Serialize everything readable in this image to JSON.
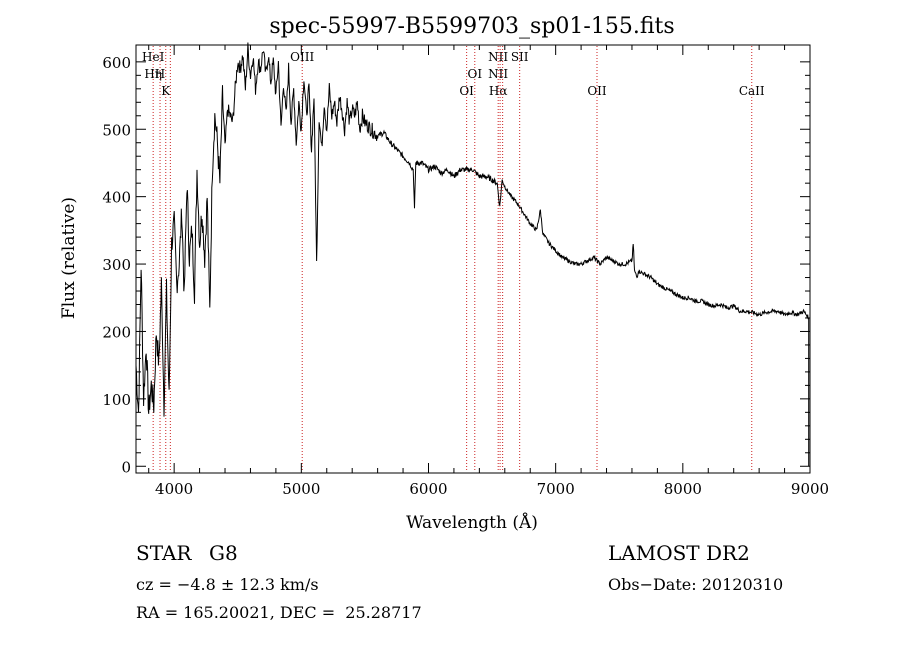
{
  "chart_data": {
    "type": "line",
    "title": "spec-55997-B5599703_sp01-155.fits",
    "xlabel": "Wavelength (Å)",
    "ylabel": "Flux (relative)",
    "xlim": [
      3700,
      9000
    ],
    "ylim": [
      -10,
      625
    ],
    "x_ticks": [
      4000,
      5000,
      6000,
      7000,
      8000,
      9000
    ],
    "y_ticks": [
      0,
      100,
      200,
      300,
      400,
      500,
      600
    ],
    "grid": false,
    "line_color": "#000000",
    "marker_color": "#cc2222",
    "series": [
      {
        "x": [
          3700,
          3720,
          3740,
          3760,
          3780,
          3800,
          3820,
          3840,
          3860,
          3880,
          3900,
          3920,
          3940,
          3960,
          3980,
          4000,
          4020,
          4040,
          4060,
          4080,
          4100,
          4120,
          4140,
          4160,
          4180,
          4200,
          4220,
          4240,
          4260,
          4280,
          4300,
          4320,
          4340,
          4360,
          4380,
          4400,
          4420,
          4440,
          4460,
          4480,
          4500,
          4520,
          4540,
          4560,
          4580,
          4600,
          4620,
          4640,
          4660,
          4680,
          4700,
          4720,
          4740,
          4760,
          4780,
          4800,
          4820,
          4840,
          4860,
          4880,
          4900,
          4920,
          4940,
          4960,
          4980,
          5000,
          5020,
          5040,
          5060,
          5080,
          5100,
          5120,
          5140,
          5160,
          5180,
          5200,
          5220,
          5240,
          5260,
          5280,
          5300,
          5320,
          5340,
          5360,
          5380,
          5400,
          5420,
          5440,
          5460,
          5480,
          5500,
          5550,
          5600,
          5650,
          5700,
          5750,
          5800,
          5850,
          5880,
          5890,
          5900,
          5950,
          6000,
          6050,
          6100,
          6150,
          6200,
          6250,
          6300,
          6350,
          6400,
          6450,
          6500,
          6540,
          6560,
          6580,
          6600,
          6650,
          6700,
          6750,
          6800,
          6850,
          6880,
          6900,
          6950,
          7000,
          7050,
          7100,
          7150,
          7200,
          7250,
          7300,
          7350,
          7400,
          7450,
          7500,
          7550,
          7600,
          7610,
          7620,
          7640,
          7650,
          7700,
          7750,
          7800,
          7850,
          7900,
          7950,
          8000,
          8050,
          8100,
          8150,
          8200,
          8250,
          8300,
          8350,
          8400,
          8450,
          8500,
          8550,
          8600,
          8650,
          8700,
          8750,
          8800,
          8850,
          8900,
          8950,
          8990
        ],
        "y": [
          150,
          80,
          300,
          100,
          180,
          80,
          120,
          90,
          200,
          150,
          270,
          90,
          260,
          100,
          330,
          360,
          270,
          300,
          380,
          250,
          420,
          310,
          350,
          260,
          440,
          330,
          380,
          310,
          400,
          230,
          440,
          520,
          480,
          420,
          550,
          470,
          530,
          520,
          510,
          560,
          600,
          590,
          610,
          560,
          620,
          580,
          610,
          560,
          600,
          590,
          620,
          580,
          610,
          570,
          600,
          550,
          600,
          500,
          570,
          520,
          590,
          510,
          560,
          480,
          540,
          500,
          580,
          520,
          560,
          470,
          550,
          300,
          520,
          470,
          540,
          500,
          560,
          520,
          540,
          510,
          550,
          530,
          500,
          540,
          510,
          530,
          520,
          540,
          500,
          520,
          510,
          500,
          490,
          495,
          480,
          470,
          460,
          450,
          440,
          380,
          450,
          450,
          440,
          445,
          435,
          440,
          430,
          440,
          440,
          440,
          430,
          430,
          425,
          420,
          385,
          425,
          415,
          400,
          390,
          375,
          360,
          350,
          380,
          345,
          330,
          320,
          310,
          305,
          300,
          300,
          305,
          310,
          300,
          310,
          305,
          300,
          300,
          305,
          330,
          290,
          280,
          290,
          285,
          280,
          270,
          265,
          260,
          255,
          250,
          250,
          245,
          245,
          240,
          238,
          240,
          235,
          238,
          230,
          230,
          228,
          225,
          228,
          230,
          230,
          225,
          228,
          225,
          230,
          220
        ]
      }
    ],
    "line_markers": [
      {
        "x": 3835,
        "labels": [
          "HeI",
          "Hη"
        ]
      },
      {
        "x": 3889,
        "labels": [
          "",
          "H"
        ]
      },
      {
        "x": 3934,
        "labels": [
          "",
          "",
          "K"
        ]
      },
      {
        "x": 3970,
        "labels": []
      },
      {
        "x": 5007,
        "labels": [
          "OIII"
        ]
      },
      {
        "x": 6300,
        "labels": [
          "",
          "",
          "OI"
        ]
      },
      {
        "x": 6364,
        "labels": [
          "",
          "OI"
        ]
      },
      {
        "x": 6548,
        "labels": [
          "NII",
          "NII",
          "Hα"
        ]
      },
      {
        "x": 6583,
        "labels": []
      },
      {
        "x": 6563,
        "labels": []
      },
      {
        "x": 6717,
        "labels": [
          "SII"
        ]
      },
      {
        "x": 7325,
        "labels": [
          "",
          "",
          "OII"
        ]
      },
      {
        "x": 8542,
        "labels": [
          "",
          "",
          "CaII"
        ]
      }
    ]
  },
  "info": {
    "object_class": "STAR",
    "subclass": "G8",
    "survey": "LAMOST DR2",
    "cz": "cz = −4.8 ± 12.3 km/s",
    "obs_date": "Obs−Date: 20120310",
    "radec": "RA = 165.20021, DEC =  25.28717"
  }
}
